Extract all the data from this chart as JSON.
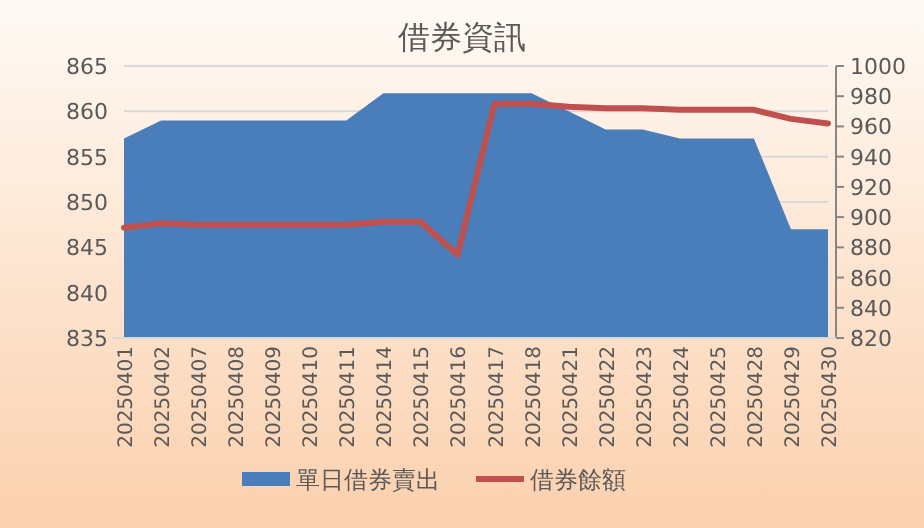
{
  "chart_data": {
    "type": "area",
    "title": "借券資訊",
    "categories": [
      "20250401",
      "20250402",
      "20250407",
      "20250408",
      "20250409",
      "20250410",
      "20250411",
      "20250414",
      "20250415",
      "20250416",
      "20250417",
      "20250418",
      "20250421",
      "20250422",
      "20250423",
      "20250424",
      "20250425",
      "20250428",
      "20250429",
      "20250430"
    ],
    "series": [
      {
        "name": "單日借券賣出",
        "type": "area",
        "color": "#4a7ebb",
        "values": [
          857,
          859,
          859,
          859,
          859,
          859,
          859,
          862,
          862,
          862,
          862,
          862,
          860,
          858,
          858,
          857,
          857,
          857,
          847,
          847
        ]
      },
      {
        "name": "借券餘額",
        "type": "line",
        "axis": "y2",
        "color": "#c0504d",
        "values": [
          893,
          896,
          895,
          895,
          895,
          895,
          895,
          897,
          897,
          875,
          975,
          975,
          973,
          972,
          972,
          971,
          971,
          971,
          965,
          962
        ]
      }
    ],
    "ylim": [
      835,
      865
    ],
    "yticks": [
      835,
      840,
      845,
      850,
      855,
      860,
      865
    ],
    "y2lim": [
      820,
      1000
    ],
    "y2ticks": [
      820,
      840,
      860,
      880,
      900,
      920,
      940,
      960,
      980,
      1000
    ],
    "grid": "y",
    "legend": "bottom"
  }
}
